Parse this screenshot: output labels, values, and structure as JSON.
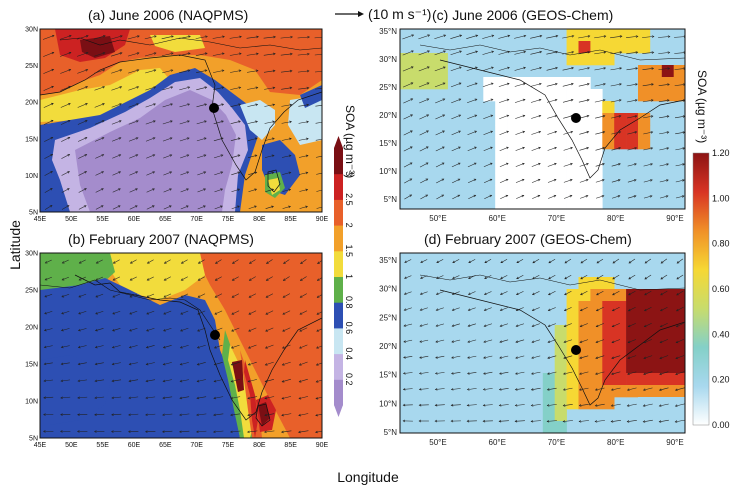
{
  "panels": {
    "a": {
      "title": "(a) June 2006 (NAQPMS)"
    },
    "b": {
      "title": "(b) February 2007 (NAQPMS)"
    },
    "c": {
      "title": "(c) June 2006 (GEOS-Chem)"
    },
    "d": {
      "title": "(d) February 2007 (GEOS-Chem)"
    }
  },
  "wind_ref": "(10 m s⁻¹)",
  "axis": {
    "xlabel": "Longitude",
    "ylabel": "Latitude"
  },
  "left_colorbar": {
    "title": "SOA (µg m⁻³)",
    "ticks": [
      "0.2",
      "0.4",
      "0.6",
      "0.8",
      "1",
      "1.5",
      "2",
      "2.5",
      "3"
    ],
    "colors": [
      "#a48ccc",
      "#c4b4e4",
      "#c8e6f2",
      "#2d4fb3",
      "#5fb04a",
      "#f2dc3c",
      "#f2a02a",
      "#e8602a",
      "#cc2222",
      "#7a0f14"
    ]
  },
  "right_colorbar": {
    "title": "SOA (µg m⁻³)",
    "ticks": [
      "0.00",
      "0.20",
      "0.40",
      "0.60",
      "0.80",
      "1.00",
      "1.20"
    ],
    "colors": [
      "#ffffff",
      "#a8d8ee",
      "#84d0c8",
      "#c8dc6c",
      "#f6d834",
      "#f09028",
      "#d83424",
      "#8c1414"
    ]
  },
  "naqpms_lon_ticks": [
    "45E",
    "50E",
    "55E",
    "60E",
    "65E",
    "70E",
    "75E",
    "80E",
    "85E",
    "90E"
  ],
  "naqpms_lat_ticks": [
    "5N",
    "10N",
    "15N",
    "20N",
    "25N",
    "30N"
  ],
  "gc_lon_ticks": [
    "50°E",
    "60°E",
    "70°E",
    "80°E",
    "90°E"
  ],
  "gc_lat_ticks": [
    "5°N",
    "10°N",
    "15°N",
    "20°N",
    "25°N",
    "30°N",
    "35°N"
  ],
  "site_marker": {
    "lon": 73,
    "lat": 19
  },
  "colors": {
    "land_dark": "#6b3ba0",
    "black": "#000000"
  }
}
